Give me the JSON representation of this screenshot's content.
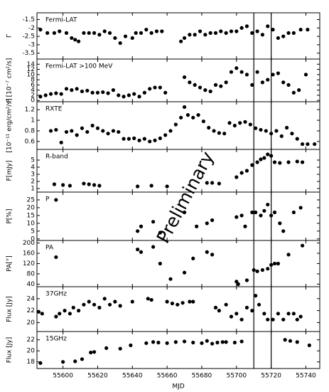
{
  "chart_data": [
    {
      "type": "scatter",
      "label": "Fermi-LAT",
      "ylabel": "Γ",
      "xlim": [
        55585,
        55748
      ],
      "xticks": [
        55600,
        55620,
        55640,
        55660,
        55680,
        55700,
        55720,
        55740
      ],
      "ylim": [
        -3.85,
        -1.1
      ],
      "yticks": [
        -1.5,
        -2,
        -2.5,
        -3,
        -3.5
      ],
      "vlines": [
        55710,
        55720
      ],
      "color": "#000000",
      "x": [
        55587,
        55591,
        55595,
        55598,
        55602,
        55605,
        55607,
        55609,
        55612,
        55615,
        55618,
        55621,
        55624,
        55627,
        55630,
        55633,
        55636,
        55640,
        55642,
        55645,
        55648,
        55651,
        55654,
        55657,
        55668,
        55670,
        55673,
        55676,
        55679,
        55682,
        55685,
        55688,
        55691,
        55694,
        55697,
        55700,
        55703,
        55706,
        55709,
        55712,
        55715,
        55718,
        55721,
        55724,
        55727,
        55730,
        55733,
        55737,
        55741
      ],
      "values": [
        -2.1,
        -2.3,
        -2.3,
        -2.2,
        -2.3,
        -2.6,
        -2.7,
        -2.8,
        -2.3,
        -2.3,
        -2.3,
        -2.4,
        -2.2,
        -2.3,
        -2.6,
        -2.9,
        -2.5,
        -2.6,
        -2.3,
        -2.3,
        -2.1,
        -2.3,
        -2.2,
        -2.2,
        -2.8,
        -2.6,
        -2.4,
        -2.4,
        -2.2,
        -2.4,
        -2.3,
        -2.3,
        -2.2,
        -2.3,
        -2.2,
        -2.2,
        -2.0,
        -1.9,
        -2.3,
        -2.2,
        -2.4,
        -1.9,
        -2.1,
        -2.6,
        -2.5,
        -2.3,
        -2.3,
        -2.1,
        -2.1
      ]
    },
    {
      "type": "scatter",
      "label": "Fermi-LAT >100 MeV",
      "ylabel": "F [10⁻⁷ cm²/s]",
      "xlim": [
        55585,
        55748
      ],
      "xticks": [
        55600,
        55620,
        55640,
        55660,
        55680,
        55700,
        55720,
        55740
      ],
      "ylim": [
        -0.5,
        16
      ],
      "yticks": [
        0,
        2,
        4,
        6,
        8,
        10,
        12,
        14
      ],
      "vlines": [
        55710,
        55720
      ],
      "color": "#000000",
      "x": [
        55587,
        55590,
        55593,
        55596,
        55599,
        55602,
        55605,
        55608,
        55611,
        55614,
        55617,
        55620,
        55623,
        55626,
        55629,
        55632,
        55635,
        55638,
        55641,
        55644,
        55647,
        55650,
        55653,
        55656,
        55659,
        55670,
        55673,
        55676,
        55679,
        55682,
        55685,
        55688,
        55691,
        55694,
        55697,
        55700,
        55703,
        55706,
        55709,
        55712,
        55715,
        55718,
        55721,
        55724,
        55727,
        55730,
        55733,
        55736,
        55740
      ],
      "values": [
        1.5,
        2,
        2.5,
        2.8,
        2.5,
        4.5,
        4,
        4.5,
        3.5,
        3.8,
        3,
        3,
        3.2,
        2.8,
        4,
        2,
        1.5,
        2,
        2.5,
        1.5,
        3,
        4.5,
        5,
        5,
        3,
        9,
        7,
        6,
        5,
        4,
        3.5,
        6,
        5.5,
        7,
        11,
        12.5,
        11,
        10,
        6,
        11,
        7,
        8,
        10,
        10.5,
        7,
        6,
        3,
        4,
        10
      ]
    },
    {
      "type": "scatter",
      "label": "RXTE",
      "ylabel": "[10⁻¹¹ erg/cm²/s]",
      "xlim": [
        55585,
        55748
      ],
      "xticks": [
        55600,
        55620,
        55640,
        55660,
        55680,
        55700,
        55720,
        55740
      ],
      "ylim": [
        0.45,
        1.35
      ],
      "yticks": [
        0.6,
        0.8,
        1,
        1.2
      ],
      "vlines": [
        55710,
        55720
      ],
      "color": "#000000",
      "x": [
        55593,
        55596,
        55599,
        55602,
        55605,
        55608,
        55611,
        55614,
        55617,
        55620,
        55623,
        55626,
        55629,
        55632,
        55635,
        55638,
        55641,
        55644,
        55647,
        55650,
        55653,
        55656,
        55659,
        55662,
        55665,
        55668,
        55670,
        55672,
        55675,
        55678,
        55681,
        55684,
        55687,
        55690,
        55693,
        55696,
        55699,
        55702,
        55705,
        55708,
        55711,
        55714,
        55717,
        55720,
        55723,
        55726,
        55729,
        55732,
        55735,
        55738,
        55741,
        55745
      ],
      "values": [
        0.8,
        0.82,
        0.58,
        0.78,
        0.8,
        0.72,
        0.85,
        0.78,
        0.9,
        0.85,
        0.8,
        0.75,
        0.8,
        0.78,
        0.65,
        0.65,
        0.66,
        0.62,
        0.65,
        0.6,
        0.62,
        0.66,
        0.72,
        0.8,
        0.92,
        1.05,
        1.25,
        1.1,
        1.05,
        1.1,
        0.98,
        0.86,
        0.8,
        0.76,
        0.75,
        0.95,
        0.9,
        0.95,
        0.97,
        0.92,
        0.85,
        0.82,
        0.8,
        0.75,
        0.8,
        0.7,
        0.86,
        0.75,
        0.65,
        0.55,
        0.55,
        0.55
      ]
    },
    {
      "type": "scatter",
      "label": "R-band",
      "ylabel": "F[mJy]",
      "annotation": "Preliminary",
      "xlim": [
        55585,
        55748
      ],
      "xticks": [
        55600,
        55620,
        55640,
        55660,
        55680,
        55700,
        55720,
        55740
      ],
      "ylim": [
        0.5,
        6.5
      ],
      "yticks": [
        1,
        2,
        3,
        4,
        5
      ],
      "vlines": [
        55710,
        55720
      ],
      "color": "#000000",
      "x": [
        55595,
        55600,
        55604,
        55612,
        55615,
        55618,
        55621,
        55643,
        55651,
        55660,
        55683,
        55686,
        55690,
        55700,
        55703,
        55706,
        55709,
        55712,
        55714,
        55716,
        55718,
        55720,
        55722,
        55725,
        55730,
        55735,
        55738
      ],
      "values": [
        1.6,
        1.5,
        1.4,
        1.7,
        1.6,
        1.5,
        1.4,
        1.3,
        1.4,
        1.3,
        1.8,
        1.8,
        1.7,
        2.6,
        3.2,
        3.5,
        4.3,
        4.7,
        5.1,
        5.3,
        5.8,
        5.6,
        4.7,
        4.6,
        4.7,
        4.8,
        4.7
      ]
    },
    {
      "type": "scatter",
      "label": "P",
      "ylabel": "P[%]",
      "xlim": [
        55585,
        55748
      ],
      "xticks": [
        55600,
        55620,
        55640,
        55660,
        55680,
        55700,
        55720,
        55740
      ],
      "ylim": [
        -1,
        30
      ],
      "yticks": [
        0,
        5,
        10,
        15,
        20,
        25
      ],
      "vlines": [
        55710,
        55720
      ],
      "color": "#000000",
      "x": [
        55596,
        55643,
        55645,
        55652,
        55656,
        55670,
        55677,
        55683,
        55686,
        55700,
        55703,
        55705,
        55709,
        55711,
        55714,
        55716,
        55718,
        55720,
        55722,
        55725,
        55727,
        55733,
        55737
      ],
      "values": [
        25,
        5,
        8,
        11,
        4,
        17,
        8,
        10,
        12,
        14,
        15,
        8,
        17,
        17,
        15,
        18,
        22,
        15,
        17,
        10,
        5,
        17,
        20
      ]
    },
    {
      "type": "scatter",
      "label": "PA",
      "ylabel": "PA[°]",
      "xlim": [
        55585,
        55748
      ],
      "xticks": [
        55600,
        55620,
        55640,
        55660,
        55680,
        55700,
        55720,
        55740
      ],
      "ylim": [
        30,
        210
      ],
      "yticks": [
        40,
        80,
        120,
        160,
        200
      ],
      "vlines": [
        55710,
        55720
      ],
      "color": "#000000",
      "x": [
        55596,
        55643,
        55645,
        55652,
        55656,
        55662,
        55670,
        55675,
        55683,
        55686,
        55700,
        55701,
        55706,
        55710,
        55712,
        55715,
        55718,
        55720,
        55722,
        55724,
        55730,
        55738
      ],
      "values": [
        145,
        175,
        165,
        185,
        120,
        60,
        85,
        140,
        165,
        155,
        50,
        40,
        55,
        95,
        90,
        95,
        100,
        115,
        120,
        120,
        155,
        190
      ]
    },
    {
      "type": "scatter",
      "label": "37GHz",
      "ylabel": "Flux [Jy]",
      "xlim": [
        55585,
        55748
      ],
      "xticks": [
        55600,
        55620,
        55640,
        55660,
        55680,
        55700,
        55720,
        55740
      ],
      "ylim": [
        18.5,
        26
      ],
      "yticks": [
        20,
        22,
        24
      ],
      "vlines": [
        55710,
        55720
      ],
      "color": "#000000",
      "x": [
        55586,
        55588,
        55596,
        55598,
        55601,
        55604,
        55606,
        55609,
        55612,
        55615,
        55618,
        55621,
        55624,
        55627,
        55630,
        55633,
        55640,
        55649,
        55651,
        55660,
        55663,
        55666,
        55669,
        55673,
        55675,
        55688,
        55690,
        55694,
        55697,
        55700,
        55703,
        55706,
        55709,
        55711,
        55713,
        55716,
        55718,
        55721,
        55724,
        55727,
        55730,
        55733,
        55735,
        55737
      ],
      "values": [
        21.8,
        21.5,
        21,
        21.5,
        22,
        21.5,
        22.5,
        22,
        23,
        23.5,
        23,
        22.5,
        24,
        23,
        23.5,
        22.8,
        23.5,
        24,
        23.8,
        23.5,
        23.2,
        23,
        23.3,
        23.5,
        23.5,
        22.5,
        22,
        23,
        21,
        21.5,
        20.5,
        22.5,
        22,
        24.5,
        23,
        21.5,
        20.5,
        20.5,
        21.5,
        20.5,
        21.5,
        21.5,
        20.5,
        21
      ]
    },
    {
      "type": "scatter",
      "label": "15GHz",
      "ylabel": "Flux [Jy]",
      "xlabel": "MJD",
      "xlim": [
        55585,
        55748
      ],
      "xticks": [
        55600,
        55620,
        55640,
        55660,
        55680,
        55700,
        55720,
        55740
      ],
      "ylim": [
        16.8,
        23.5
      ],
      "yticks": [
        18,
        20,
        22
      ],
      "vlines": [
        55710,
        55720
      ],
      "color": "#000000",
      "x": [
        55587,
        55600,
        55607,
        55611,
        55616,
        55618,
        55625,
        55633,
        55639,
        55648,
        55652,
        55655,
        55660,
        55665,
        55670,
        55675,
        55680,
        55683,
        55686,
        55689,
        55692,
        55694,
        55699,
        55703,
        55728,
        55731,
        55735,
        55742
      ],
      "values": [
        17.8,
        18,
        18.1,
        18.5,
        19.7,
        19.8,
        20.5,
        20.4,
        21,
        21.4,
        21.6,
        21.5,
        21.4,
        21.6,
        21.7,
        21.5,
        21.4,
        21.8,
        21.3,
        21.5,
        21.6,
        21.6,
        21.5,
        21.7,
        22,
        21.8,
        21.6,
        21
      ]
    }
  ]
}
